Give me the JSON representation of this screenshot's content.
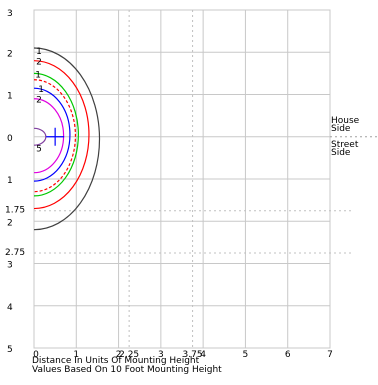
{
  "chart_data": {
    "type": "line",
    "title": "",
    "xlabel": "Distance In Units Of Mounting Height",
    "footnote": "Values Based On 10 Foot Mounting Height",
    "xlim": [
      0,
      7
    ],
    "ylim": [
      -5,
      3
    ],
    "x_ticks": [
      0,
      1,
      2,
      3,
      4,
      5,
      6,
      7
    ],
    "x_ref_lines": [
      2.25,
      3.75
    ],
    "x_extra_labels": [
      "2.25",
      "3",
      "3.75"
    ],
    "y_ticks": [
      3,
      2,
      1,
      0,
      -1,
      -2,
      -3,
      -4,
      -5
    ],
    "y_tick_labels": [
      "3",
      "2",
      "1",
      "0",
      "1",
      "2",
      "3",
      "4",
      "5"
    ],
    "y_ref_lines": [
      -1.75,
      -2.75
    ],
    "y_ref_labels": [
      "1.75",
      "2.75"
    ],
    "grid": true,
    "luminaire_position": [
      0.5,
      0
    ],
    "side_labels": {
      "house": [
        "House",
        "Side"
      ],
      "street": [
        "Street",
        "Side"
      ]
    },
    "series": [
      {
        "label": "1",
        "color": "#404040",
        "dashed": false,
        "x_max": 1.55,
        "y_top": 2.1,
        "y_bottom": -2.2,
        "label_at": [
          0.05,
          2.05
        ]
      },
      {
        "label": "2",
        "color": "#ff0000",
        "dashed": false,
        "x_max": 1.3,
        "y_top": 1.8,
        "y_bottom": -1.7,
        "label_at": [
          0.05,
          1.8
        ]
      },
      {
        "label": "1",
        "color": "#00c800",
        "dashed": false,
        "x_max": 1.05,
        "y_top": 1.5,
        "y_bottom": -1.4,
        "label_at": [
          0.03,
          1.5
        ]
      },
      {
        "label": "",
        "color": "#ff0000",
        "dashed": true,
        "x_max": 0.98,
        "y_top": 1.35,
        "y_bottom": -1.3,
        "label_at": null
      },
      {
        "label": "1",
        "color": "#0000ff",
        "dashed": false,
        "x_max": 0.85,
        "y_top": 1.15,
        "y_bottom": -1.05,
        "label_at": [
          0.1,
          1.15
        ]
      },
      {
        "label": "2",
        "color": "#e000e0",
        "dashed": false,
        "x_max": 0.7,
        "y_top": 0.9,
        "y_bottom": -0.85,
        "label_at": [
          0.05,
          0.9
        ]
      },
      {
        "label": "5",
        "color": "#8040a0",
        "dashed": false,
        "x_max": 0.28,
        "y_top": 0.2,
        "y_bottom": -0.2,
        "label_at": [
          0.05,
          -0.25
        ]
      }
    ]
  }
}
